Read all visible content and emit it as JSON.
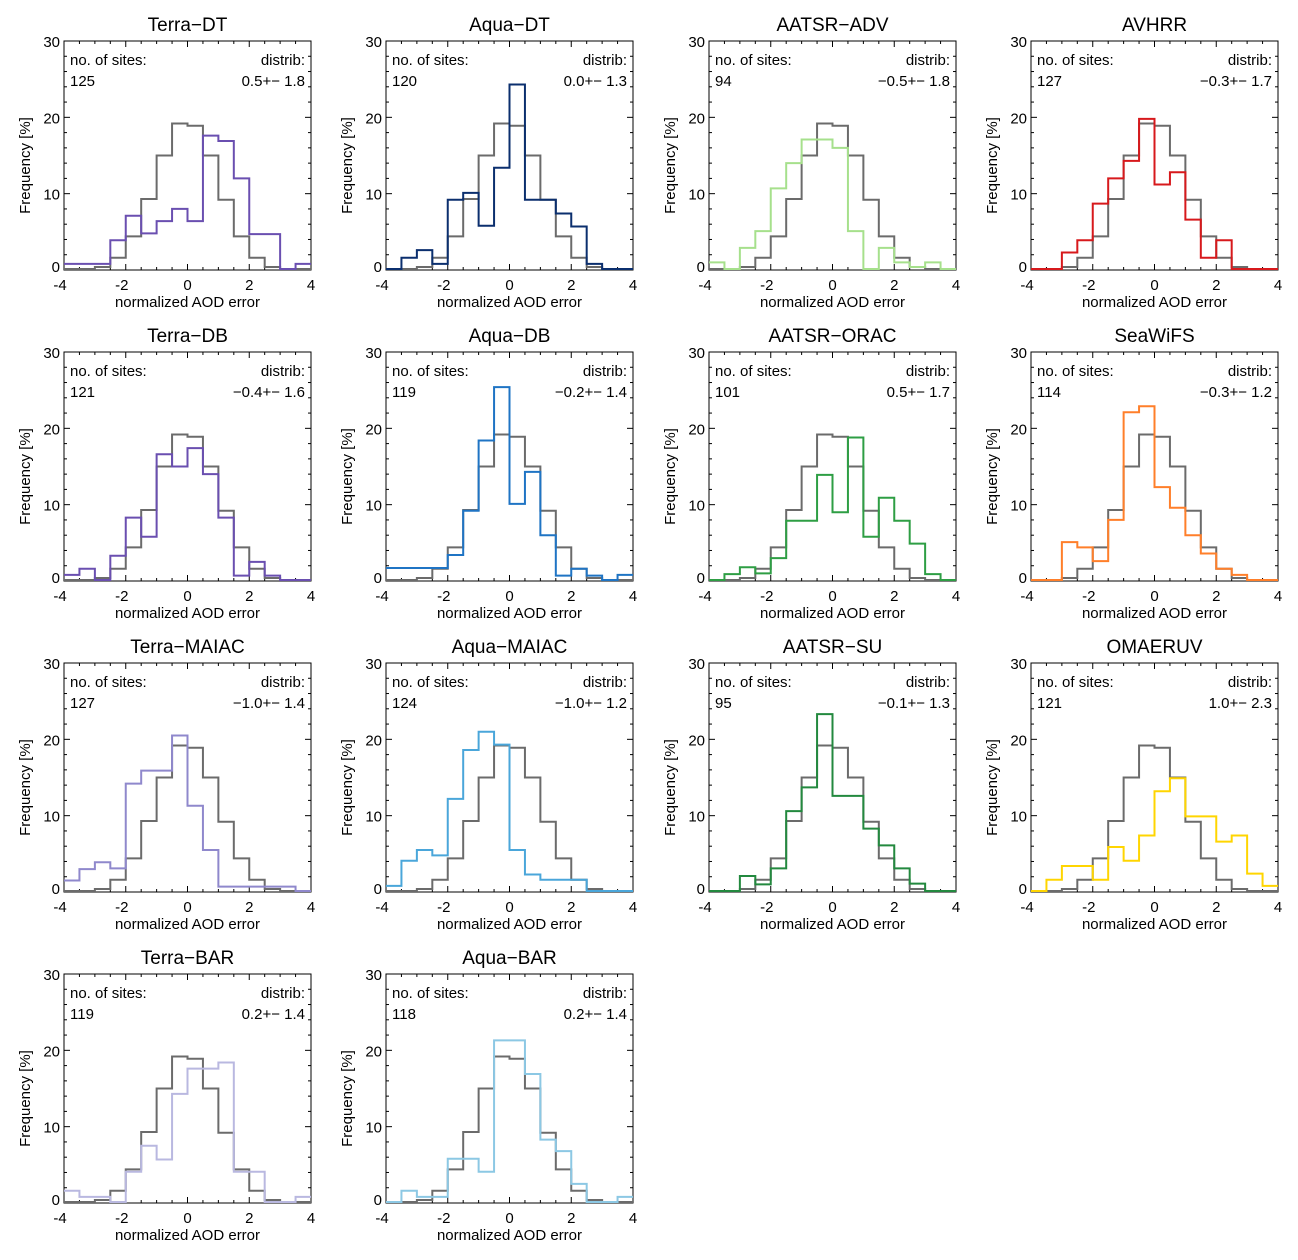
{
  "chart_data": {
    "type": "bar",
    "histogram_style": "step",
    "xlabel": "normalized AOD error",
    "ylabel": "Frequency [%]",
    "xlim": [
      -4,
      4
    ],
    "ylim": [
      0,
      30
    ],
    "xticks": [
      -4,
      -2,
      0,
      2,
      4
    ],
    "yticks": [
      0,
      10,
      20,
      30
    ],
    "sites_label": "no. of sites:",
    "distrib_label": "distrib:",
    "bin_edges": [
      -4,
      -3.5,
      -3,
      -2.5,
      -2,
      -1.5,
      -1,
      -0.5,
      0,
      0.5,
      1,
      1.5,
      2,
      2.5,
      3,
      3.5,
      4
    ],
    "reference": {
      "color": "#6b6b6b",
      "values": [
        0,
        0.1,
        0.4,
        1.6,
        4.4,
        9.3,
        15,
        19.2,
        18.9,
        15,
        9.2,
        4.4,
        1.6,
        0.4,
        0.1,
        0
      ]
    },
    "panels": [
      {
        "title": "Terra−DT",
        "sites": "125",
        "distrib": "0.5+− 1.8",
        "color": "#6a4fb0",
        "values": [
          0.8,
          0.8,
          0.8,
          3.9,
          7.1,
          4.8,
          6.4,
          8.0,
          6.4,
          17.6,
          16.9,
          12,
          4.7,
          4.7,
          0,
          0.8
        ]
      },
      {
        "title": "Aqua−DT",
        "sites": "120",
        "distrib": "0.0+− 1.3",
        "color": "#0b2f6e",
        "values": [
          0,
          1.6,
          2.6,
          0.8,
          9.2,
          10.1,
          5.8,
          13.4,
          24.3,
          9.2,
          9.2,
          7.4,
          5.7,
          0.8,
          0,
          0
        ]
      },
      {
        "title": "AATSR−ADV",
        "sites": "94",
        "distrib": "−0.5+− 1.8",
        "color": "#a6e08c",
        "values": [
          1,
          0,
          2.9,
          5.1,
          10.7,
          14,
          17.1,
          17.1,
          16,
          5.1,
          0,
          2.9,
          1,
          0.4,
          1,
          0
        ]
      },
      {
        "title": "AVHRR",
        "sites": "127",
        "distrib": "−0.3+− 1.7",
        "color": "#d7191c",
        "values": [
          0,
          0,
          2.3,
          3.9,
          8.7,
          12,
          14.3,
          19.8,
          11.2,
          12.8,
          6.6,
          1.6,
          3.9,
          0,
          0,
          0
        ]
      },
      {
        "title": "Terra−DB",
        "sites": "121",
        "distrib": "−0.4+− 1.6",
        "color": "#6a4fb0",
        "values": [
          0.8,
          1.6,
          0,
          3.3,
          8.3,
          5.8,
          16.6,
          15,
          17.4,
          14,
          8.3,
          0.7,
          2.5,
          0.7,
          0,
          0
        ]
      },
      {
        "title": "Aqua−DB",
        "sites": "119",
        "distrib": "−0.2+− 1.4",
        "color": "#1f74c4",
        "values": [
          1.7,
          1.7,
          1.7,
          1.7,
          3.4,
          9.2,
          18.4,
          25.4,
          10.1,
          14.3,
          6,
          0.7,
          1.6,
          0.7,
          0,
          0.8
        ]
      },
      {
        "title": "AATSR−ORAC",
        "sites": "101",
        "distrib": "0.5+− 1.7",
        "color": "#2e9e44",
        "values": [
          0,
          0.9,
          1.8,
          1,
          3,
          7.9,
          7.9,
          13.9,
          9,
          18.8,
          5.8,
          10.9,
          7.9,
          4.9,
          0.9,
          0
        ]
      },
      {
        "title": "SeaWiFS",
        "sites": "114",
        "distrib": "−0.3+− 1.2",
        "color": "#ff7f2a",
        "values": [
          0,
          0,
          5.1,
          4.4,
          2.6,
          8,
          22.1,
          22.9,
          12.3,
          9.6,
          6,
          3.6,
          1.6,
          0.8,
          0,
          0
        ]
      },
      {
        "title": "Terra−MAIAC",
        "sites": "127",
        "distrib": "−1.0+− 1.4",
        "color": "#8f88cc",
        "values": [
          1.5,
          3,
          3.9,
          3.1,
          14.2,
          15.9,
          15.9,
          20.5,
          11.3,
          5.5,
          0.7,
          0.7,
          0.7,
          0.7,
          0.7,
          0
        ]
      },
      {
        "title": "Aqua−MAIAC",
        "sites": "124",
        "distrib": "−1.0+− 1.2",
        "color": "#4aa6da",
        "values": [
          0.8,
          4.1,
          5.5,
          4.8,
          12.2,
          18.6,
          21,
          19.3,
          5.5,
          2.3,
          1.6,
          1.6,
          1.6,
          0,
          0,
          0
        ]
      },
      {
        "title": "AATSR−SU",
        "sites": "95",
        "distrib": "−0.1+− 1.3",
        "color": "#23893f",
        "values": [
          0,
          0,
          2.1,
          1,
          3.1,
          10.6,
          13.7,
          23.3,
          12.6,
          12.6,
          8.3,
          6.1,
          3.1,
          1.1,
          0,
          0
        ]
      },
      {
        "title": "OMAERUV",
        "sites": "121",
        "distrib": "1.0+− 2.3",
        "color": "#ffd500",
        "values": [
          0,
          1.6,
          3.4,
          3.4,
          1.6,
          5.9,
          4.1,
          7.4,
          13.2,
          14.9,
          9.9,
          9.9,
          6.6,
          7.4,
          2.4,
          0.8
        ]
      },
      {
        "title": "Terra−BAR",
        "sites": "119",
        "distrib": "0.2+− 1.4",
        "color": "#b9b8e0",
        "values": [
          1.6,
          0.8,
          0.8,
          0,
          4.1,
          7.5,
          5.7,
          14.3,
          17.6,
          17.6,
          18.4,
          4.1,
          4.1,
          0,
          0,
          0.8
        ]
      },
      {
        "title": "Aqua−BAR",
        "sites": "118",
        "distrib": "0.2+− 1.4",
        "color": "#8cc8e4",
        "values": [
          0,
          1.6,
          0.8,
          0.8,
          5.8,
          5.8,
          4.1,
          21.3,
          21.3,
          16.9,
          8.3,
          6.8,
          2.5,
          0,
          0,
          0.8
        ]
      }
    ]
  }
}
